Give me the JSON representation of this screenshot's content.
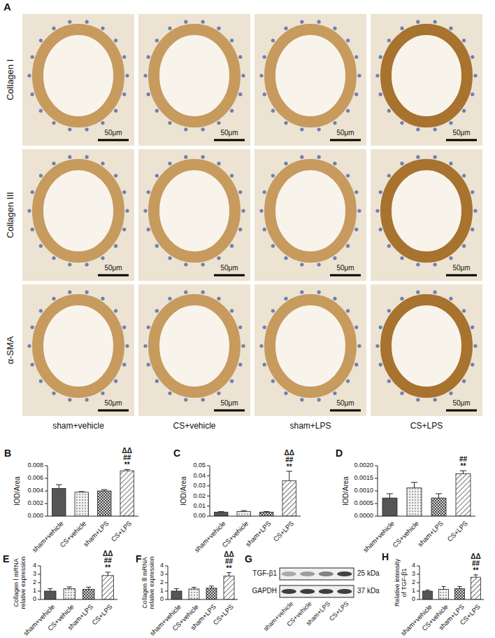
{
  "panel_a": {
    "panel": "A",
    "rows": [
      "Collagen I",
      "Collagen III",
      "α-SMA"
    ],
    "columns": [
      "sham+vehicle",
      "CS+vehicle",
      "sham+LPS",
      "CS+LPS"
    ],
    "scale_bar": "50μm"
  },
  "panel_g": {
    "panel": "G",
    "bands": [
      {
        "name": "TGF-β1",
        "size": "25 kDa"
      },
      {
        "name": "GAPDH",
        "size": "37 kDa"
      }
    ],
    "lanes": [
      "sham+vehicle",
      "CS+vehicle",
      "sham+LPS",
      "CS+LPS"
    ]
  },
  "chart_data": [
    {
      "type": "bar",
      "panel": "B",
      "y_label": "IOD/Area",
      "categories": [
        "sham+vehicle",
        "CS+vehicle",
        "sham+LPS",
        "CS+LPS"
      ],
      "values": [
        0.0044,
        0.0038,
        0.004,
        0.0072
      ],
      "errors": [
        0.0006,
        0.0001,
        0.0002,
        0.0002
      ],
      "colors": [
        "#555555",
        "#f2f2f2",
        "#d9d9d9",
        "#ffffff"
      ],
      "ylim": [
        0,
        0.008
      ],
      "yticks": [
        {
          "value": 0,
          "label": "0.000"
        },
        0.002,
        0.004,
        0.006,
        0.008
      ],
      "annotations": [
        {
          "category": "CS+LPS",
          "labels": [
            "ΔΔ",
            "##",
            "**"
          ]
        }
      ]
    },
    {
      "type": "bar",
      "panel": "C",
      "y_label": "IOD/Area",
      "categories": [
        "sham+vehicle",
        "CS+vehicle",
        "sham+LPS",
        "CS+LPS"
      ],
      "values": [
        0.004,
        0.0045,
        0.004,
        0.035
      ],
      "errors": [
        0.0005,
        0.001,
        0.0005,
        0.0095
      ],
      "colors": [
        "#555555",
        "#f2f2f2",
        "#d9d9d9",
        "#ffffff"
      ],
      "ylim": [
        0,
        0.05
      ],
      "yticks": [
        {
          "value": 0,
          "label": "0.00"
        },
        0.01,
        0.02,
        0.03,
        0.04,
        0.05
      ],
      "annotations": [
        {
          "category": "CS+LPS",
          "labels": [
            "ΔΔ",
            "##",
            "**"
          ]
        }
      ]
    },
    {
      "type": "bar",
      "panel": "D",
      "y_label": "IOD/Area",
      "categories": [
        "sham+vehicle",
        "CS+vehicle",
        "sham+LPS",
        "CS+LPS"
      ],
      "values": [
        0.00072,
        0.00112,
        0.00072,
        0.00168
      ],
      "errors": [
        0.00017,
        0.00022,
        0.00017,
        0.00012
      ],
      "colors": [
        "#555555",
        "#f2f2f2",
        "#d9d9d9",
        "#ffffff"
      ],
      "ylim": [
        0,
        0.002
      ],
      "yticks": [
        {
          "value": 0,
          "label": "0.0000"
        },
        0.0005,
        {
          "value": 0.001,
          "label": "0.0010"
        },
        0.0015,
        {
          "value": 0.002,
          "label": "0.0020"
        }
      ],
      "annotations": [
        {
          "category": "CS+LPS",
          "labels": [
            "##",
            "**"
          ]
        }
      ]
    },
    {
      "type": "bar",
      "panel": "E",
      "y_label": "Collagen Ⅰ mRNA relative expression",
      "categories": [
        "sham+vehicle",
        "CS+vehicle",
        "sham+LPS",
        "CS+LPS"
      ],
      "values": [
        1.0,
        1.28,
        1.22,
        2.85
      ],
      "errors": [
        0.28,
        0.22,
        0.25,
        0.4
      ],
      "colors": [
        "#555555",
        "#f2f2f2",
        "#d9d9d9",
        "#ffffff"
      ],
      "ylim": [
        0,
        4
      ],
      "yticks": [
        0,
        1,
        2,
        3,
        4
      ],
      "annotations": [
        {
          "category": "CS+LPS",
          "labels": [
            "ΔΔ",
            "##",
            "**"
          ]
        }
      ]
    },
    {
      "type": "bar",
      "panel": "F",
      "y_label": "Collagen Ⅲ mRNA relative expression",
      "categories": [
        "sham+vehicle",
        "CS+vehicle",
        "sham+LPS",
        "CS+LPS"
      ],
      "values": [
        1.0,
        1.25,
        1.35,
        2.8
      ],
      "errors": [
        0.28,
        0.2,
        0.25,
        0.4
      ],
      "colors": [
        "#555555",
        "#f2f2f2",
        "#d9d9d9",
        "#ffffff"
      ],
      "ylim": [
        0,
        4
      ],
      "yticks": [
        0,
        1,
        2,
        3,
        4
      ],
      "annotations": [
        {
          "category": "CS+LPS",
          "labels": [
            "ΔΔ",
            "##",
            "**"
          ]
        }
      ]
    },
    {
      "type": "bar",
      "panel": "H",
      "y_label": "Relative intensity of TGF-β1",
      "categories": [
        "sham+vehicle",
        "CS+vehicle",
        "sham+LPS",
        "CS+LPS"
      ],
      "values": [
        1.0,
        1.2,
        1.3,
        2.65
      ],
      "errors": [
        0.12,
        0.35,
        0.25,
        0.28
      ],
      "colors": [
        "#555555",
        "#f2f2f2",
        "#d9d9d9",
        "#ffffff"
      ],
      "ylim": [
        0,
        4
      ],
      "yticks": [
        0,
        1,
        2,
        3,
        4
      ],
      "annotations": [
        {
          "category": "CS+LPS",
          "labels": [
            "ΔΔ",
            "##",
            "**"
          ]
        }
      ]
    }
  ]
}
